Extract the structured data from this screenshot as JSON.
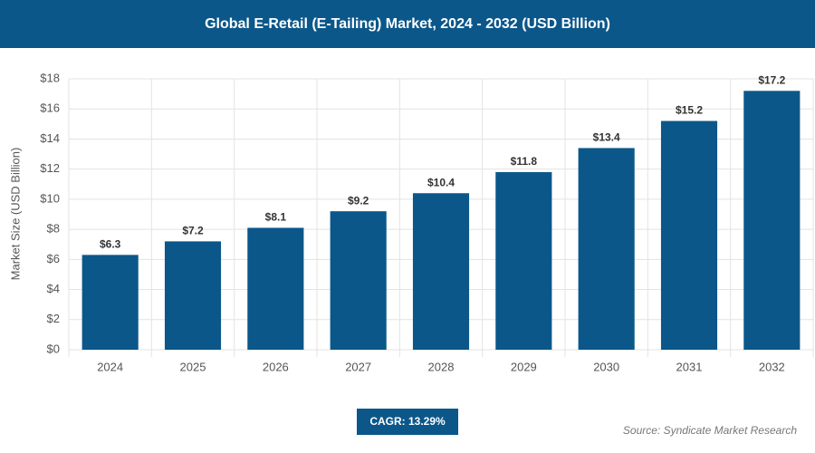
{
  "chart_data": {
    "type": "bar",
    "title": "Global E-Retail (E-Tailing) Market, 2024 - 2032 (USD Billion)",
    "y_label": "Market Size (USD Billion)",
    "categories": [
      "2024",
      "2025",
      "2026",
      "2027",
      "2028",
      "2029",
      "2030",
      "2031",
      "2032"
    ],
    "values": [
      6.3,
      7.2,
      8.1,
      9.2,
      10.4,
      11.8,
      13.4,
      15.2,
      17.2
    ],
    "value_labels": [
      "$6.3",
      "$7.2",
      "$8.1",
      "$9.2",
      "$10.4",
      "$11.8",
      "$13.4",
      "$15.2",
      "$17.2"
    ],
    "color": "#0b578a",
    "ylim": [
      0,
      18
    ],
    "yticks": [
      {
        "value": 0,
        "label": "$0"
      },
      {
        "value": 2,
        "label": "$2"
      },
      {
        "value": 4,
        "label": "$4"
      },
      {
        "value": 6,
        "label": "$6"
      },
      {
        "value": 8,
        "label": "$8"
      },
      {
        "value": 10,
        "label": "$10"
      },
      {
        "value": 12,
        "label": "$12"
      },
      {
        "value": 14,
        "label": "$14"
      },
      {
        "value": 16,
        "label": "$16"
      },
      {
        "value": 18,
        "label": "$18"
      }
    ],
    "grid": true,
    "annotation": "CAGR: 13.29%",
    "source": "Source: Syndicate Market Research"
  }
}
